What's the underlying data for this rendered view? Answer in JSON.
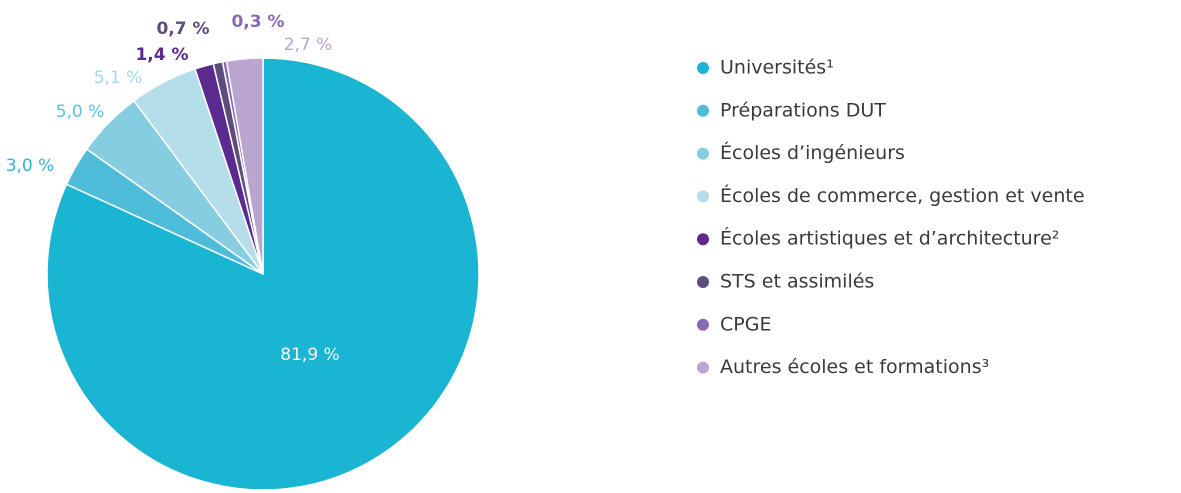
{
  "chart_data": {
    "type": "pie",
    "categories": [
      "Universités¹",
      "Préparations DUT",
      "Écoles d’ingénieurs",
      "Écoles de commerce, gestion et vente",
      "Écoles artistiques et d’architecture²",
      "STS et assimilés",
      "CPGE",
      "Autres écoles et formations³"
    ],
    "values": [
      81.9,
      3.0,
      5.0,
      5.1,
      1.4,
      0.7,
      0.3,
      2.7
    ],
    "value_labels": [
      "81,9 %",
      "3,0 %",
      "5,0 %",
      "5,1 %",
      "1,4 %",
      "0,7 %",
      "0,3 %",
      "2,7 %"
    ],
    "colors": [
      "#1bb5d4",
      "#4fbcd9",
      "#86cde2",
      "#b5deea",
      "#5a2a8e",
      "#5e4c7c",
      "#8b68b3",
      "#b9a5d0"
    ],
    "legend": "right"
  }
}
